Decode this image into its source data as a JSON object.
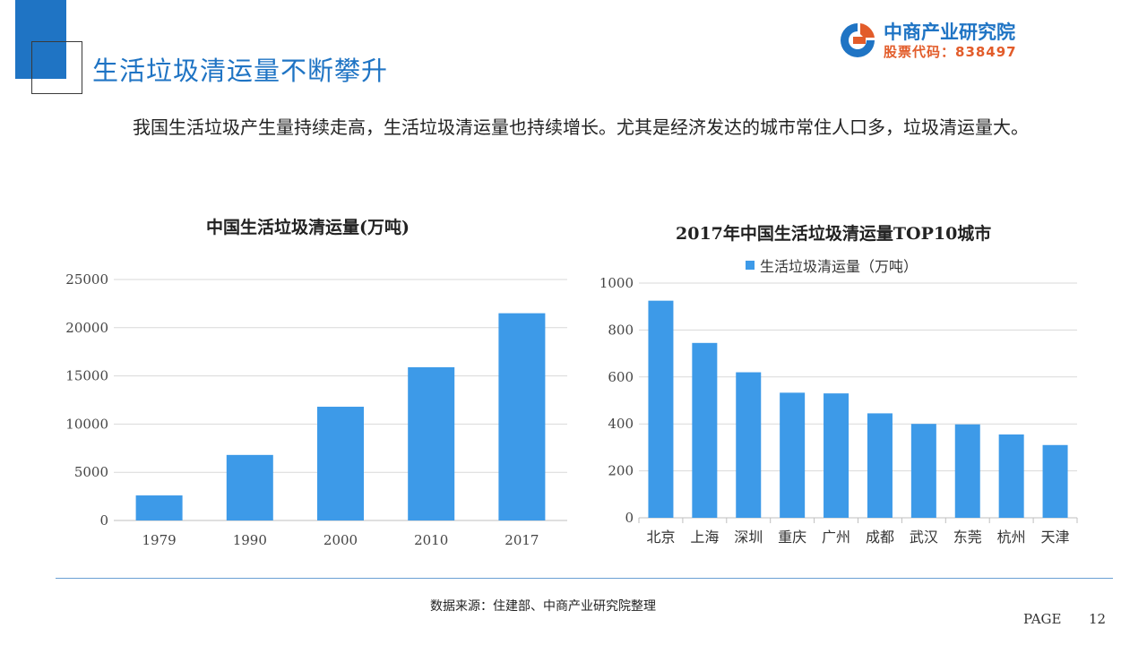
{
  "page": {
    "title": "生活垃圾清运量不断攀升",
    "intro": "我国生活垃圾产生量持续走高，生活垃圾清运量也持续增长。尤其是经济发达的城市常住人口多，垃圾清运量大。",
    "source": "数据来源：住建部、中商产业研究院整理",
    "page_label": "PAGE",
    "page_number": "12"
  },
  "logo": {
    "name": "中商产业研究院",
    "stock_code": "股票代码：838497",
    "icon": "company-logo-icon"
  },
  "colors": {
    "accent": "#1f74c4",
    "bar": "#3d9ae8",
    "logo_code": "#e25c2a",
    "grid": "#d9d9d9"
  },
  "chart_data": [
    {
      "type": "bar",
      "title": "中国生活垃圾清运量(万吨)",
      "categories": [
        "1979",
        "1990",
        "2000",
        "2010",
        "2017"
      ],
      "values": [
        2600,
        6800,
        11800,
        15900,
        21500
      ],
      "ylim": [
        0,
        25000
      ],
      "yticks": [
        0,
        5000,
        10000,
        15000,
        20000,
        25000
      ],
      "xlabel": "",
      "ylabel": "",
      "grid": true,
      "legend": "none"
    },
    {
      "type": "bar",
      "title": "2017年中国生活垃圾清运量TOP10城市",
      "categories": [
        "北京",
        "上海",
        "深圳",
        "重庆",
        "广州",
        "成都",
        "武汉",
        "东莞",
        "杭州",
        "天津"
      ],
      "series": [
        {
          "name": "生活垃圾清运量（万吨）",
          "values": [
            925,
            745,
            620,
            533,
            530,
            445,
            400,
            398,
            355,
            310
          ]
        }
      ],
      "ylim": [
        0,
        1000
      ],
      "yticks": [
        0,
        200,
        400,
        600,
        800,
        1000
      ],
      "xlabel": "",
      "ylabel": "",
      "grid": true,
      "legend": "top"
    }
  ]
}
